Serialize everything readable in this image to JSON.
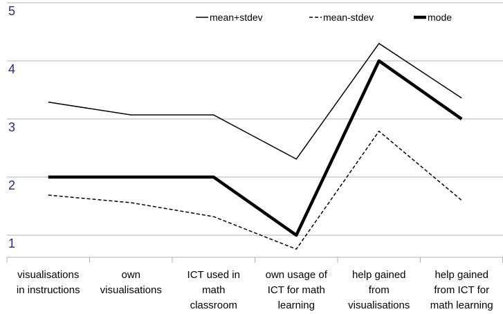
{
  "chart_data": {
    "type": "line",
    "categories": [
      [
        "visualisations",
        "in instructions"
      ],
      [
        "own",
        "visualisations"
      ],
      [
        "ICT used in",
        "math",
        "classroom"
      ],
      [
        "own usage of",
        "ICT for math",
        "learning"
      ],
      [
        "help gained",
        "from",
        "visualisations"
      ],
      [
        "help gained",
        "from ICT for",
        "math learning"
      ]
    ],
    "series": [
      {
        "name": "mean+stdev",
        "color": "#000000",
        "dash": "solid",
        "width": 1.5,
        "values": [
          3.29,
          3.07,
          3.07,
          2.31,
          4.3,
          3.36
        ]
      },
      {
        "name": "mean-stdev",
        "color": "#000000",
        "dash": "dashed",
        "width": 1.5,
        "values": [
          1.69,
          1.56,
          1.32,
          0.76,
          2.79,
          1.6
        ]
      },
      {
        "name": "mode",
        "color": "#000000",
        "dash": "solid",
        "width": 4.5,
        "values": [
          2,
          2,
          2,
          1,
          4,
          3
        ]
      }
    ],
    "ylim": [
      0.62,
      5
    ],
    "yticks": [
      1,
      2,
      3,
      4,
      5
    ],
    "grid": true,
    "legend": "top"
  }
}
